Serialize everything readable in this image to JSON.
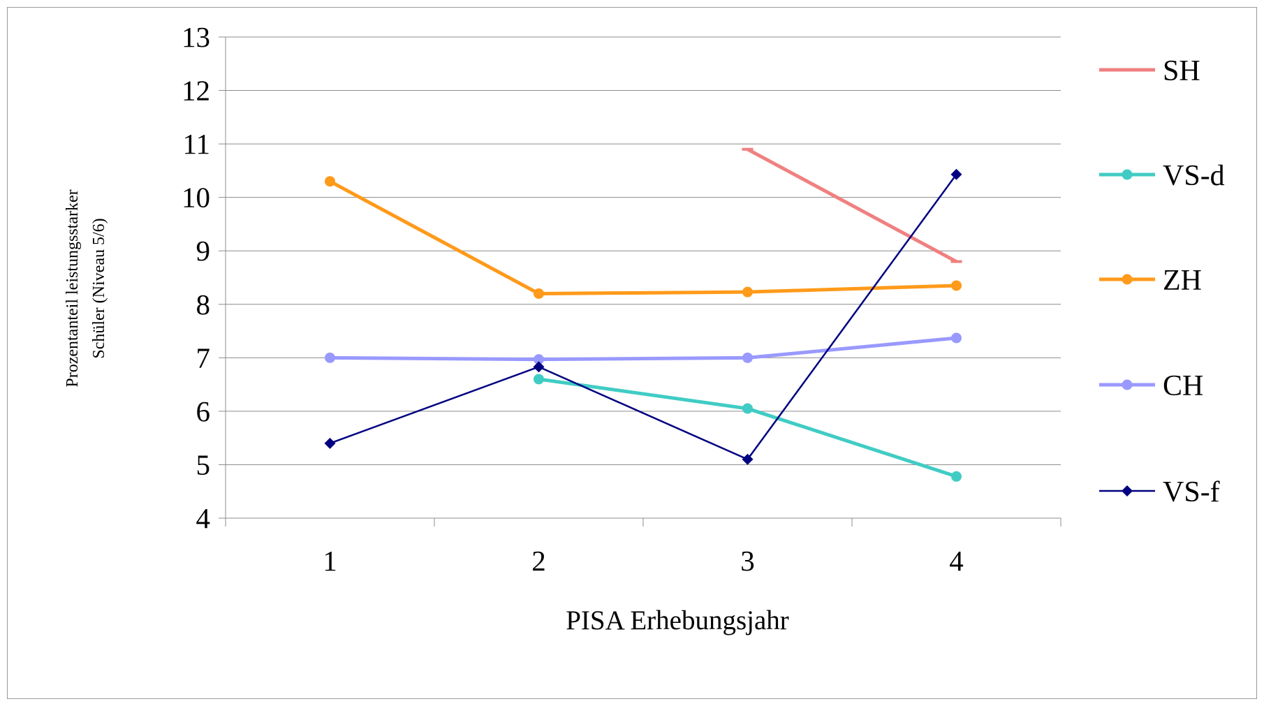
{
  "chart_data": {
    "type": "line",
    "title": "",
    "xlabel": "PISA Erhebungsjahr",
    "ylabel_lines": [
      "Prozentanteil leistungsstarker",
      "Schüler  (Niveau  5/6)"
    ],
    "categories": [
      "1",
      "2",
      "3",
      "4"
    ],
    "y_ticks": [
      "4",
      "5",
      "6",
      "7",
      "8",
      "9",
      "10",
      "11",
      "12",
      "13"
    ],
    "ylim": [
      4,
      13
    ],
    "grid": "horizontal",
    "legend_position": "right",
    "series": [
      {
        "name": "SH",
        "color": "#F08080",
        "marker": "dash",
        "values": [
          null,
          null,
          10.9,
          8.8
        ]
      },
      {
        "name": "VS-d",
        "color": "#40CCC4",
        "marker": "circle",
        "values": [
          null,
          6.6,
          6.05,
          4.78
        ]
      },
      {
        "name": "ZH",
        "color": "#FF9A1A",
        "marker": "circle",
        "values": [
          10.3,
          8.2,
          8.23,
          8.35
        ]
      },
      {
        "name": "CH",
        "color": "#9999FF",
        "marker": "circle",
        "values": [
          7.0,
          6.97,
          7.0,
          7.37
        ]
      },
      {
        "name": "VS-f",
        "color": "#000080",
        "marker": "diamond",
        "values": [
          5.4,
          6.83,
          5.1,
          10.43
        ]
      }
    ]
  }
}
